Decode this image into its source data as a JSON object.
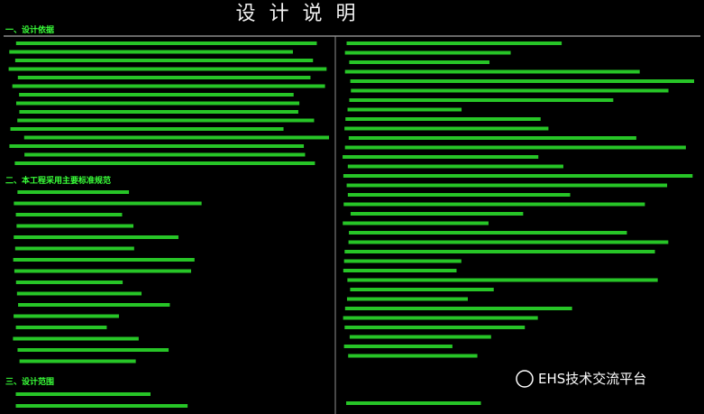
{
  "title": "设 计 说 明",
  "sections": [
    {
      "heading": "一、设计依据"
    },
    {
      "heading": "二、本工程采用主要标准规范"
    },
    {
      "heading": "三、设计范围"
    }
  ],
  "watermark": "EHS技术交流平台"
}
